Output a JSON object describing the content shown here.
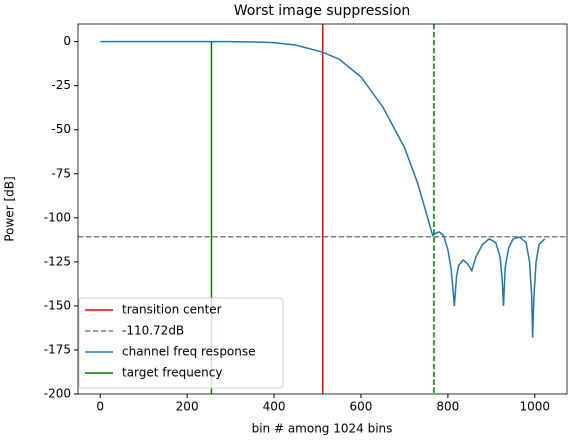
{
  "chart_data": {
    "type": "line",
    "title": "Worst image suppression",
    "xlabel": "bin # among 1024 bins",
    "ylabel": "Power [dB]",
    "xlim": [
      -51.15,
      1074.15
    ],
    "ylim": [
      -200,
      10
    ],
    "xticks": [
      0,
      200,
      400,
      600,
      800,
      1000
    ],
    "yticks": [
      -200,
      -175,
      -150,
      -125,
      -100,
      -75,
      -50,
      -25,
      0
    ],
    "legend": "lower left",
    "x": [
      0,
      100,
      200,
      300,
      350,
      400,
      450,
      512,
      550,
      600,
      650,
      700,
      730,
      750,
      765,
      770,
      780,
      790,
      800,
      808,
      815,
      820,
      825,
      835,
      845,
      855,
      865,
      880,
      895,
      910,
      920,
      925,
      928,
      932,
      940,
      950,
      965,
      980,
      988,
      993,
      995,
      998,
      1003,
      1010,
      1023
    ],
    "series": [
      {
        "kind": "vline",
        "name": "transition center",
        "color": "#ff0000",
        "x": 512
      },
      {
        "kind": "hline",
        "name": "-110.72dB",
        "color": "#808080",
        "dash": true,
        "y": -110.72
      },
      {
        "kind": "line",
        "name": "channel freq response",
        "color": "#1f77b4",
        "values": [
          0,
          0,
          0,
          0,
          -0.2,
          -0.6,
          -2,
          -6,
          -10,
          -20,
          -37,
          -60,
          -80,
          -97,
          -110,
          -109,
          -108,
          -110,
          -118,
          -130,
          -150,
          -133,
          -127,
          -124,
          -126,
          -130,
          -122,
          -115,
          -112,
          -114,
          -122,
          -135,
          -150,
          -128,
          -117,
          -112,
          -111,
          -114,
          -125,
          -145,
          -168,
          -145,
          -125,
          -115,
          -112
        ]
      },
      {
        "kind": "vline",
        "name": "target frequency",
        "color": "#008000",
        "x": 256,
        "yspan": [
          -200,
          0
        ]
      },
      {
        "kind": "vline",
        "color": "#008000",
        "dash": true,
        "x": 768
      }
    ]
  }
}
